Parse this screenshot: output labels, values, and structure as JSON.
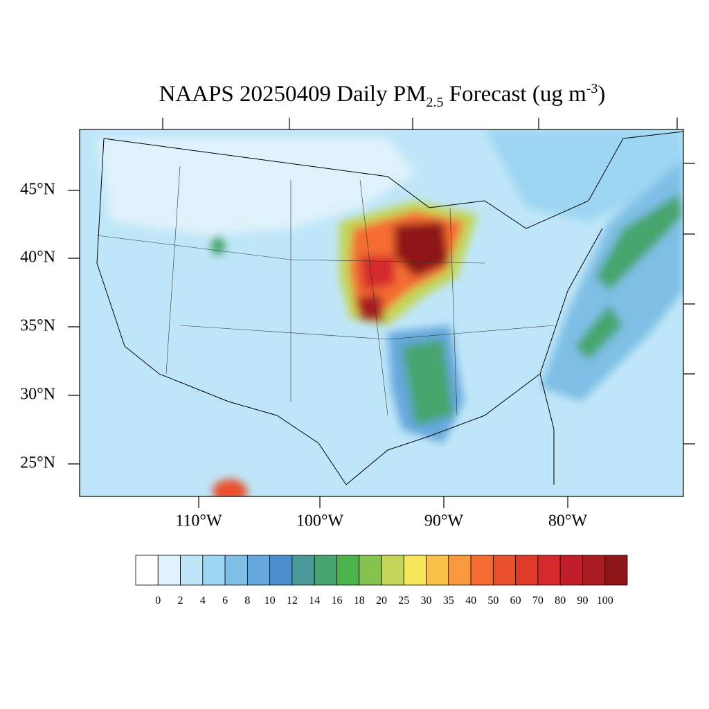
{
  "title": {
    "main": "NAAPS 20250409 Daily PM",
    "sub": "2.5",
    "after": " Forecast (ug m",
    "sup": "-3",
    "end": ")"
  },
  "lat_labels": [
    "45°N",
    "40°N",
    "35°N",
    "30°N",
    "25°N"
  ],
  "lon_labels": [
    "110°W",
    "100°W",
    "90°W",
    "80°W"
  ],
  "colorbar": {
    "labels": [
      "0",
      "2",
      "4",
      "6",
      "8",
      "10",
      "12",
      "14",
      "16",
      "18",
      "20",
      "25",
      "30",
      "35",
      "40",
      "50",
      "60",
      "70",
      "80",
      "90",
      "100"
    ],
    "colors": [
      "#ffffff",
      "#dff2fb",
      "#bfe6f8",
      "#9dd6f3",
      "#7fbfe6",
      "#66a8dd",
      "#4a8fcb",
      "#4b9a9a",
      "#46a56e",
      "#4ab34a",
      "#86c34e",
      "#c3d65a",
      "#f7e65a",
      "#f9c04a",
      "#f8993e",
      "#f46c30",
      "#e9502e",
      "#df3a2a",
      "#d42a2d",
      "#c01e2a",
      "#a91c22",
      "#8e1518"
    ]
  }
}
